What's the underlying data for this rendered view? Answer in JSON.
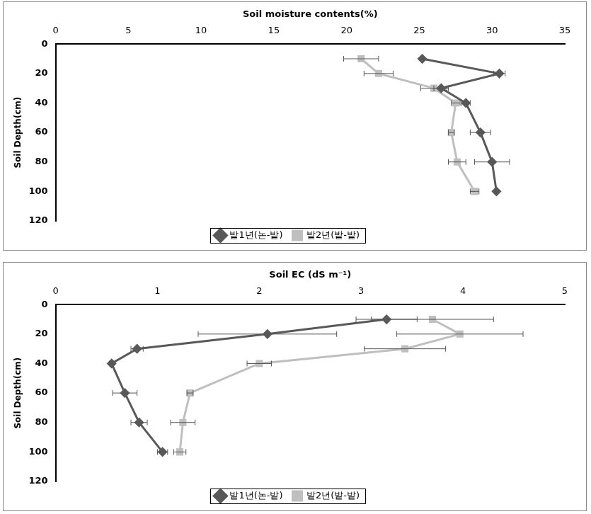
{
  "chart_data": [
    {
      "type": "line",
      "x_label": "Soil moisture contents(%)",
      "y_label": "Soil Depth(cm)",
      "y": [
        10,
        20,
        30,
        40,
        60,
        80,
        100
      ],
      "xlim": [
        0,
        35
      ],
      "xticks": [
        0,
        5,
        10,
        15,
        20,
        25,
        30,
        35
      ],
      "ylim": [
        0,
        120
      ],
      "yticks": [
        0,
        20,
        40,
        60,
        80,
        100,
        120
      ],
      "grid": false,
      "legend": "bottom",
      "series": [
        {
          "name": "밭1년(논-밭)",
          "color": "#595959",
          "marker": "diamond",
          "values": [
            25.2,
            30.5,
            26.5,
            28.2,
            29.2,
            30.0,
            30.3
          ],
          "errors": [
            0.1,
            0.4,
            0.5,
            0.3,
            0.7,
            1.2,
            0.1
          ]
        },
        {
          "name": "밭2년(밭-밭)",
          "color": "#bfbfbf",
          "marker": "square",
          "values": [
            21.0,
            22.2,
            26.0,
            27.5,
            27.2,
            27.6,
            28.8
          ],
          "errors": [
            1.2,
            1.0,
            0.9,
            0.3,
            0.2,
            0.6,
            0.3
          ]
        }
      ]
    },
    {
      "type": "line",
      "x_label": "Soil EC (dS m⁻¹)",
      "y_label": "Soil Depth(cm)",
      "y": [
        10,
        20,
        30,
        40,
        60,
        80,
        100
      ],
      "xlim": [
        0,
        5
      ],
      "xticks": [
        0,
        1,
        2,
        3,
        4,
        5
      ],
      "ylim": [
        0,
        120
      ],
      "yticks": [
        0,
        20,
        40,
        60,
        80,
        100,
        120
      ],
      "grid": false,
      "legend": "bottom",
      "series": [
        {
          "name": "밭1년(논-밭)",
          "color": "#595959",
          "marker": "diamond",
          "values": [
            3.25,
            2.08,
            0.8,
            0.55,
            0.68,
            0.82,
            1.05
          ],
          "errors": [
            0.3,
            0.68,
            0.06,
            0.02,
            0.12,
            0.08,
            0.05
          ]
        },
        {
          "name": "밭2년(밭-밭)",
          "color": "#bfbfbf",
          "marker": "square",
          "values": [
            3.7,
            3.97,
            3.43,
            2.0,
            1.32,
            1.25,
            1.22
          ],
          "errors": [
            0.6,
            0.62,
            0.4,
            0.12,
            0.03,
            0.12,
            0.06
          ]
        }
      ]
    }
  ]
}
